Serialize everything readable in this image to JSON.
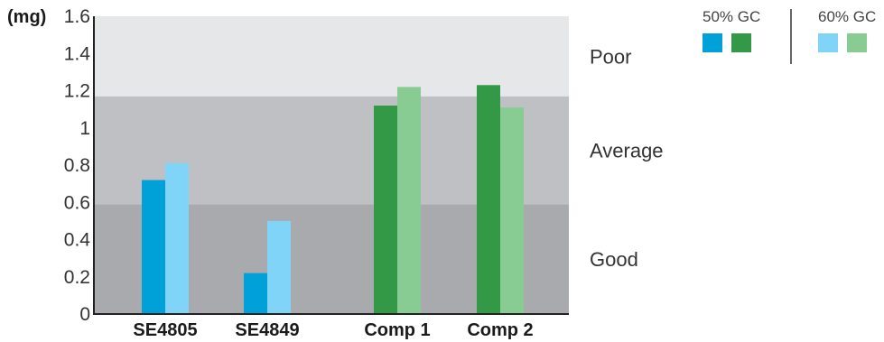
{
  "chart_data": {
    "type": "bar",
    "ylabel": "(mg)",
    "ylim": [
      0,
      1.6
    ],
    "yticks": [
      "0",
      "0.2",
      "0.4",
      "0.6",
      "0.8",
      "1",
      "1.2",
      "1.4",
      "1.6"
    ],
    "categories": [
      "SE4805",
      "SE4849",
      "Comp 1",
      "Comp 2"
    ],
    "series": [
      {
        "name": "50% GC",
        "values": [
          0.72,
          0.22,
          null,
          null
        ],
        "color": "#00a0d8"
      },
      {
        "name": "60% GC",
        "values": [
          0.81,
          0.5,
          null,
          null
        ],
        "color": "#80d4f8"
      },
      {
        "name": "50% GC",
        "values": [
          null,
          null,
          1.12,
          1.23
        ],
        "color": "#339947"
      },
      {
        "name": "60% GC",
        "values": [
          null,
          null,
          1.22,
          1.11
        ],
        "color": "#88cc94"
      }
    ],
    "zones": [
      {
        "label": "Good",
        "from": 0,
        "to": 0.59,
        "color": "#a9aaad"
      },
      {
        "label": "Average",
        "from": 0.59,
        "to": 1.17,
        "color": "#bfc0c3"
      },
      {
        "label": "Poor",
        "from": 1.17,
        "to": 1.6,
        "color": "#e6e7e8"
      }
    ],
    "legend": {
      "placement": "top-right",
      "groups": [
        {
          "title": "50% GC",
          "colors": [
            "#00a0d8",
            "#339947"
          ]
        },
        {
          "title": "60% GC",
          "colors": [
            "#80d4f8",
            "#88cc94"
          ]
        }
      ]
    }
  }
}
